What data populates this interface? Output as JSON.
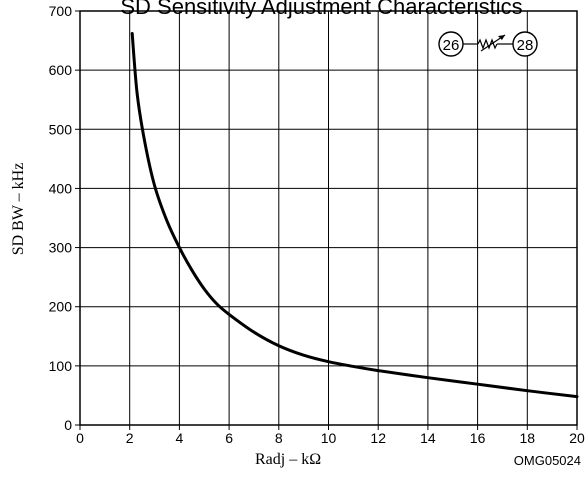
{
  "chart_data": {
    "type": "line",
    "title": "SD Sensitivity Adjustment Characteristics",
    "xlabel": "Radj  –  kΩ",
    "ylabel": "SD BW  –  kHz",
    "xlim": [
      0,
      20
    ],
    "ylim": [
      0,
      700
    ],
    "x_ticks": [
      0,
      2,
      4,
      6,
      8,
      10,
      12,
      14,
      16,
      18,
      20
    ],
    "y_ticks": [
      0,
      100,
      200,
      300,
      400,
      500,
      600,
      700
    ],
    "grid": true,
    "legend": "none",
    "line_color": "#000000",
    "series": [
      {
        "x": [
          2.1,
          2.3,
          2.6,
          3.0,
          3.5,
          4.0,
          4.5,
          5.0,
          5.5,
          6.0,
          7.0,
          8.0,
          9.0,
          10.0,
          11.0,
          12.0,
          14.0,
          16.0,
          18.0,
          20.0
        ],
        "values": [
          662,
          560,
          480,
          405,
          345,
          300,
          262,
          230,
          205,
          187,
          157,
          134,
          118,
          107,
          99,
          92,
          80,
          69,
          58,
          48
        ]
      }
    ],
    "annotation": {
      "node_left": "26",
      "node_right": "28",
      "symbol": "variable-resistor-icon"
    },
    "figure_code": "OMG05024"
  }
}
